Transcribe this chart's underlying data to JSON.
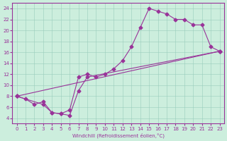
{
  "xlabel": "Windchill (Refroidissement éolien,°C)",
  "bg_color": "#cceedd",
  "line_color": "#993399",
  "marker": "D",
  "markersize": 2.5,
  "linewidth": 0.8,
  "xlim": [
    -0.5,
    23.5
  ],
  "ylim": [
    3,
    25
  ],
  "xticks": [
    0,
    1,
    2,
    3,
    4,
    5,
    6,
    7,
    8,
    9,
    10,
    11,
    12,
    13,
    14,
    15,
    16,
    17,
    18,
    19,
    20,
    21,
    22,
    23
  ],
  "yticks": [
    4,
    6,
    8,
    10,
    12,
    14,
    16,
    18,
    20,
    22,
    24
  ],
  "series": [
    [
      [
        0,
        8
      ],
      [
        1,
        7.5
      ],
      [
        2,
        6.5
      ],
      [
        3,
        7
      ],
      [
        4,
        5
      ],
      [
        5,
        4.8
      ],
      [
        6,
        5.5
      ],
      [
        7,
        11.5
      ],
      [
        8,
        12
      ],
      [
        9,
        11.5
      ],
      [
        10,
        12
      ],
      [
        11,
        13
      ],
      [
        12,
        14.5
      ],
      [
        13,
        17
      ],
      [
        14,
        20.5
      ],
      [
        15,
        24
      ],
      [
        16,
        23.5
      ],
      [
        17,
        23
      ],
      [
        18,
        22
      ],
      [
        19,
        22
      ],
      [
        20,
        21
      ],
      [
        21,
        21
      ],
      [
        22,
        17
      ],
      [
        23,
        16.2
      ]
    ],
    [
      [
        0,
        8
      ],
      [
        3,
        6.5
      ],
      [
        4,
        5
      ],
      [
        5,
        4.8
      ],
      [
        6,
        4.5
      ],
      [
        7,
        9
      ],
      [
        8,
        11.5
      ],
      [
        23,
        16.2
      ]
    ],
    [
      [
        0,
        8
      ],
      [
        23,
        16.2
      ]
    ]
  ]
}
